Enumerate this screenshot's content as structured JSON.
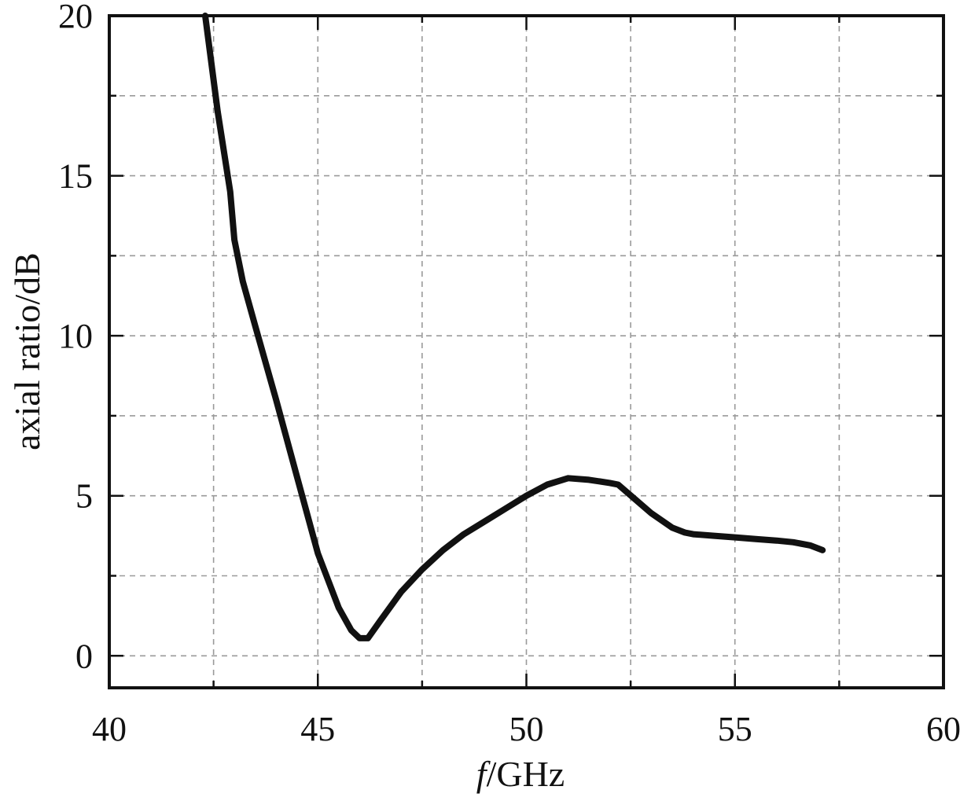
{
  "chart_data": {
    "type": "line",
    "title": "",
    "xlabel_italic": "f",
    "xlabel_rest": "/GHz",
    "ylabel": "axial ratio/dB",
    "xlim": [
      40,
      60
    ],
    "ylim": [
      -1,
      20
    ],
    "x_ticks": [
      40,
      45,
      50,
      55,
      60
    ],
    "y_ticks": [
      0,
      5,
      10,
      15,
      20
    ],
    "x_minor_step": 2.5,
    "y_minor_step": 2.5,
    "grid": true,
    "legend": "none",
    "colors": {
      "line": "#111111",
      "grid": "#9a9a9a",
      "frame": "#111111"
    },
    "series": [
      {
        "x": [
          42.3,
          42.6,
          42.9,
          43.0,
          43.2,
          43.5,
          44.0,
          44.5,
          45.0,
          45.5,
          45.8,
          46.0,
          46.2,
          46.5,
          47.0,
          47.5,
          48.0,
          48.5,
          49.0,
          49.5,
          50.0,
          50.5,
          51.0,
          51.5,
          52.0,
          52.2,
          52.6,
          53.0,
          53.5,
          53.8,
          54.0,
          54.5,
          55.0,
          55.5,
          56.0,
          56.4,
          56.8,
          57.1
        ],
        "y": [
          20.0,
          17.0,
          14.5,
          13.0,
          11.7,
          10.3,
          8.0,
          5.6,
          3.2,
          1.5,
          0.8,
          0.55,
          0.55,
          1.1,
          2.0,
          2.7,
          3.3,
          3.8,
          4.2,
          4.6,
          5.0,
          5.35,
          5.55,
          5.5,
          5.4,
          5.35,
          4.9,
          4.45,
          4.0,
          3.85,
          3.8,
          3.75,
          3.7,
          3.65,
          3.6,
          3.55,
          3.45,
          3.3
        ]
      }
    ]
  }
}
